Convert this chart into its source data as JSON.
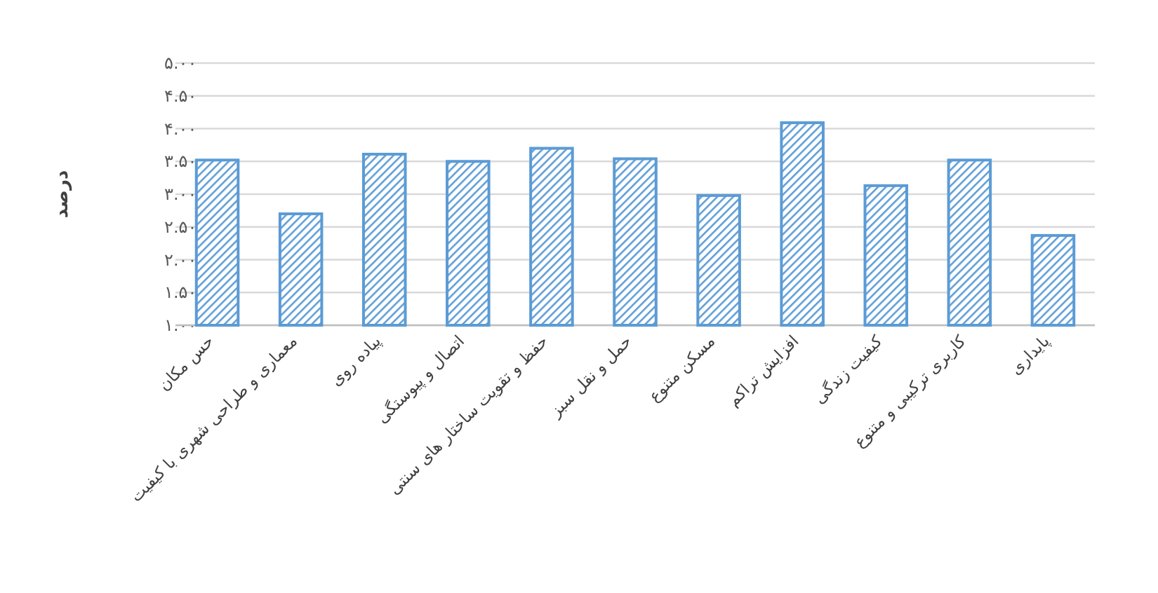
{
  "chart_data": {
    "type": "bar",
    "ylabel": "درصد",
    "categories": [
      "حس مکان",
      "معماری و طراحی شهری با کیفیت",
      "پیاده روی",
      "اتصال و پیوستگی",
      "حفظ و تقویت ساختار های سنتی",
      "حمل و نقل سبز",
      "مسکن متنوع",
      "افزایش تراکم",
      "کیفیت زندگی",
      "کاربری ترکیبی و متنوع",
      "پایداری"
    ],
    "values": [
      3.52,
      2.7,
      3.61,
      3.5,
      3.7,
      3.54,
      2.98,
      4.09,
      3.13,
      3.52,
      2.37
    ],
    "color": "#5b9bd5",
    "ylim": [
      1,
      5
    ],
    "yticks": [
      {
        "value": 1,
        "label": "۱.۰۰"
      },
      {
        "value": 1.5,
        "label": "۱.۵۰"
      },
      {
        "value": 2,
        "label": "۲.۰۰"
      },
      {
        "value": 2.5,
        "label": "۲.۵۰"
      },
      {
        "value": 3,
        "label": "۳.۰۰"
      },
      {
        "value": 3.5,
        "label": "۳.۵۰"
      },
      {
        "value": 4,
        "label": "۴.۰۰"
      },
      {
        "value": 4.5,
        "label": "۴.۵۰"
      },
      {
        "value": 5,
        "label": "۵.۰۰"
      }
    ],
    "grid": "y"
  }
}
